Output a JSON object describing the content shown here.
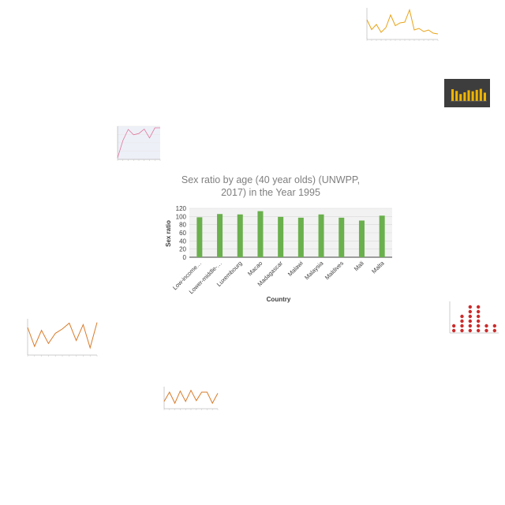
{
  "main_chart": {
    "title_line1": "Sex ratio by age (40 year olds) (UNWPP,",
    "title_line2": "2017) in the Year 1995",
    "xlabel": "Country",
    "ylabel": "Sex ratio",
    "bar_color": "#6ab04c",
    "y_ticks": [
      "0",
      "20",
      "40",
      "60",
      "80",
      "100",
      "120"
    ]
  },
  "chart_data": [
    {
      "type": "bar",
      "title": "Sex ratio by age (40 year olds) (UNWPP, 2017) in the Year 1995",
      "xlabel": "Country",
      "ylabel": "Sex ratio",
      "categories": [
        "Low-income…",
        "Lower-middle-…",
        "Luxembourg",
        "Macao",
        "Madagascar",
        "Malawi",
        "Malaysia",
        "Maldives",
        "Mali",
        "Malta"
      ],
      "values": [
        98,
        106,
        105,
        113,
        99,
        97,
        105,
        97,
        90,
        102
      ],
      "ylim": [
        0,
        120
      ],
      "grid": true,
      "legend": "none"
    },
    {
      "type": "line",
      "title": "",
      "color": "#e8a317",
      "values": [
        70,
        45,
        58,
        38,
        50,
        82,
        55,
        62,
        64,
        95,
        44,
        48,
        40,
        44,
        36,
        34
      ]
    },
    {
      "type": "bar",
      "title": "",
      "background": "#3d3d3d",
      "color": "#f0b400",
      "values": [
        68,
        58,
        40,
        50,
        62,
        56,
        64,
        70,
        48
      ]
    },
    {
      "type": "line",
      "title": "",
      "color": "#e0779a",
      "values": [
        5,
        60,
        95,
        78,
        82,
        96,
        68,
        100,
        100
      ]
    },
    {
      "type": "line",
      "title": "",
      "color": "#d97b29",
      "values": [
        88,
        62,
        84,
        66,
        80,
        86,
        94,
        70,
        92,
        60,
        95
      ]
    },
    {
      "type": "scatter",
      "title": "",
      "color": "#cc2b2b",
      "values": [
        2,
        4,
        6,
        6,
        2,
        2
      ]
    },
    {
      "type": "line",
      "title": "",
      "color": "#d97b29",
      "values": [
        60,
        85,
        55,
        88,
        60,
        90,
        62,
        85,
        85,
        55,
        82
      ]
    }
  ]
}
